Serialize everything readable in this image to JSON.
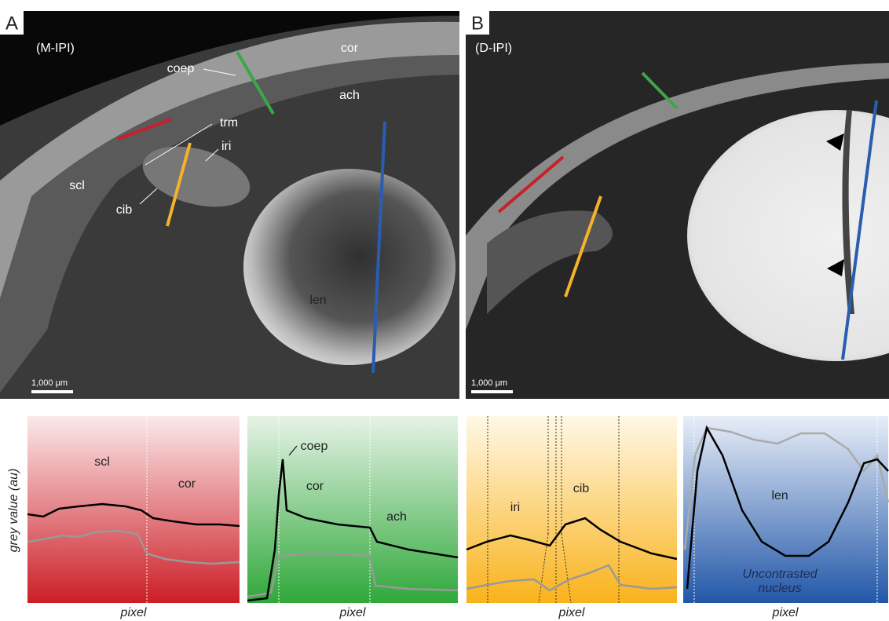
{
  "panels": [
    {
      "letter": "A",
      "mode": "(M-IPI)",
      "labels": [
        "cor",
        "coep",
        "ach",
        "trm",
        "iri",
        "scl",
        "cib",
        "len"
      ],
      "scale_bar": "1,000 µm"
    },
    {
      "letter": "B",
      "mode": "(D-IPI)",
      "scale_bar": "1,000 µm"
    }
  ],
  "profiles": [
    {
      "labels": [
        "scl",
        "cor"
      ],
      "x_label": "pixel"
    },
    {
      "labels": [
        "coep",
        "cor",
        "ach"
      ],
      "x_label": "pixel"
    },
    {
      "labels": [
        "iri",
        "cib"
      ],
      "x_label": "pixel"
    },
    {
      "labels": [
        "len",
        "Uncontrasted",
        "nucleus"
      ],
      "x_label": "pixel"
    }
  ],
  "y_label": "grey value (au)"
}
